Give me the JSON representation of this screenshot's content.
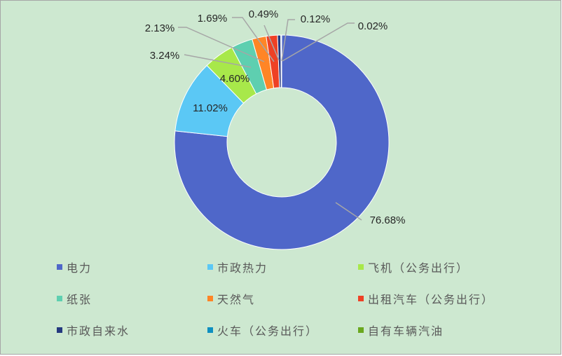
{
  "chart_data": {
    "type": "pie",
    "variant": "donut",
    "start_angle": "top, clockwise",
    "categories": [
      "电力",
      "市政热力",
      "飞机（公务出行）",
      "纸张",
      "天然气",
      "出租汽车（公务出行）",
      "市政自来水",
      "火车（公务出行）",
      "自有车辆汽油"
    ],
    "values": [
      76.68,
      11.02,
      4.6,
      3.24,
      2.13,
      1.69,
      0.49,
      0.12,
      0.02
    ],
    "data_labels": [
      "76.68%",
      "11.02%",
      "4.60%",
      "3.24%",
      "2.13%",
      "1.69%",
      "0.49%",
      "0.12%",
      "0.02%"
    ],
    "colors": [
      "#4f67c9",
      "#5bc8f5",
      "#a8e84a",
      "#5ecfb0",
      "#ff8526",
      "#ee4125",
      "#24397f",
      "#0e8fc0",
      "#6aa81e"
    ],
    "legend_position": "bottom",
    "background": "#cde8d0"
  }
}
